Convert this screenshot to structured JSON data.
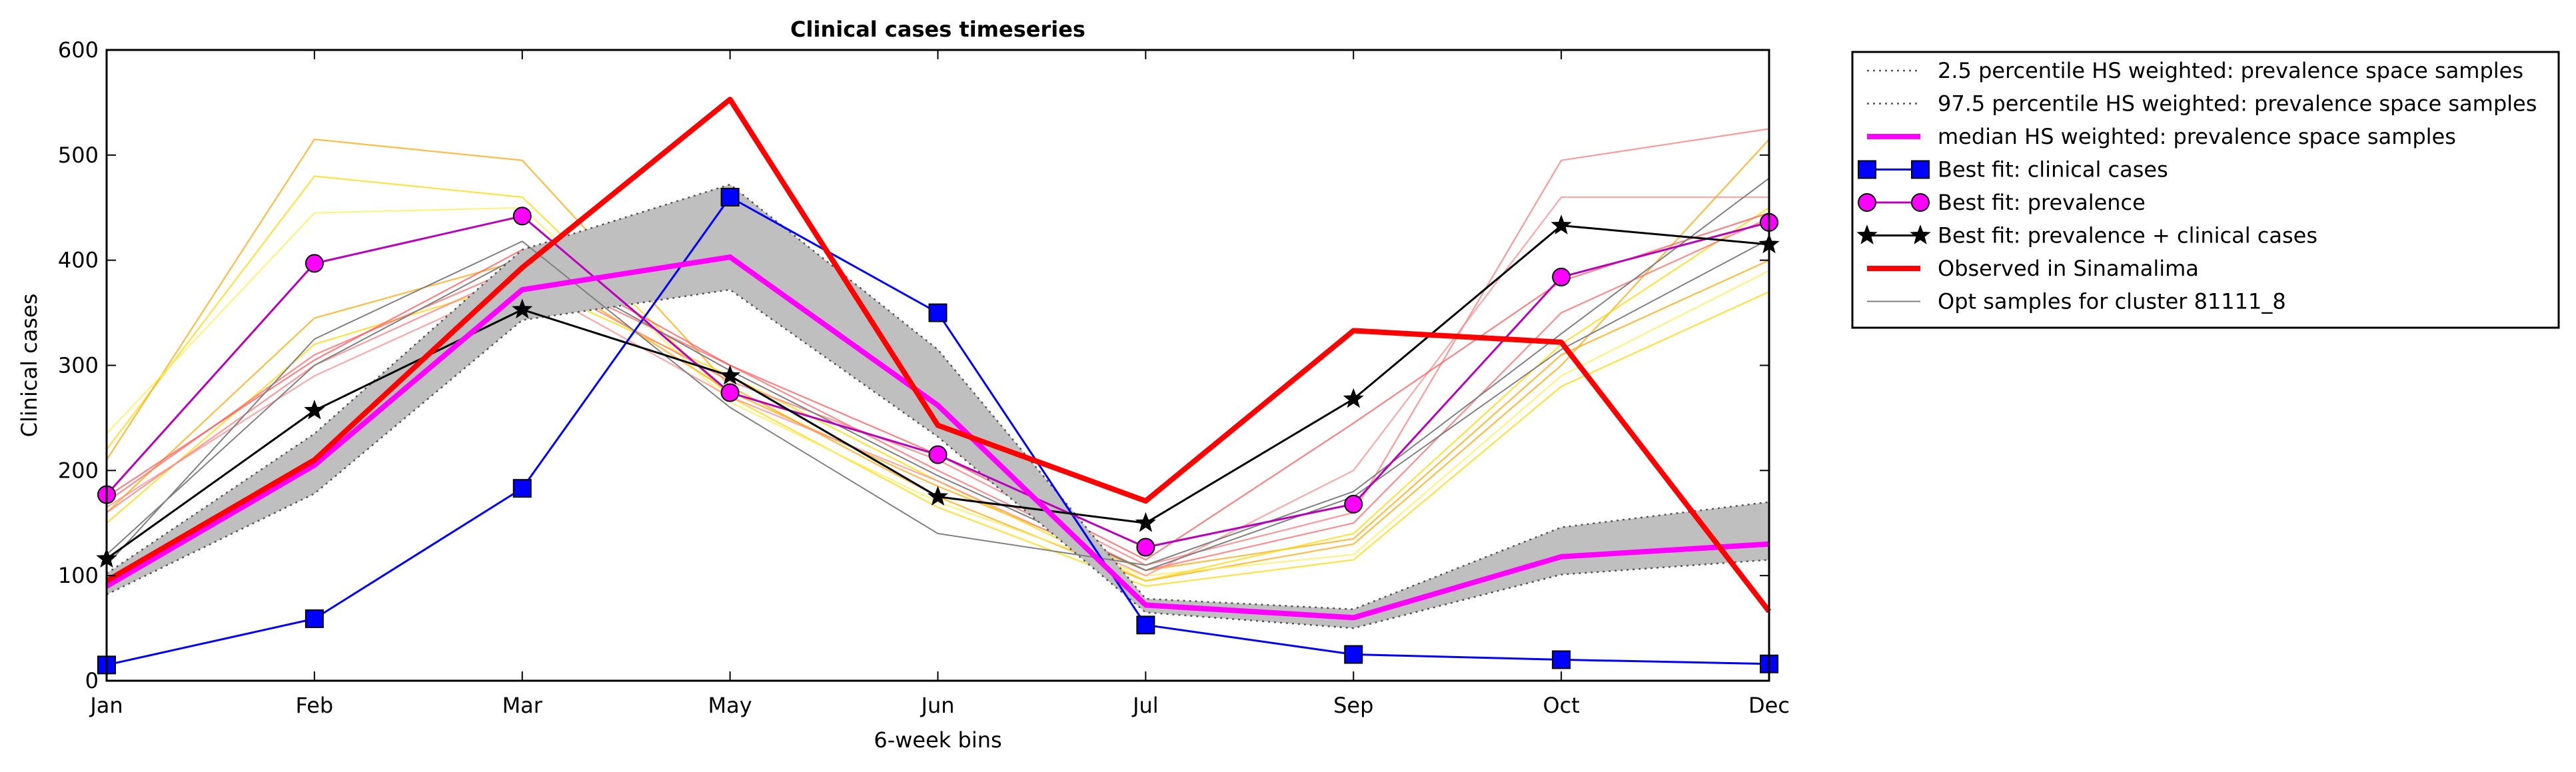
{
  "chart_data": {
    "type": "line",
    "title": "Clinical cases timeseries",
    "xlabel": "6-week bins",
    "ylabel": "Clinical cases",
    "categories": [
      "Jan",
      "Feb",
      "Mar",
      "May",
      "Jun",
      "Jul",
      "Sep",
      "Oct",
      "Dec"
    ],
    "ylim": [
      0,
      600
    ],
    "yticks": [
      "0",
      "100",
      "200",
      "300",
      "400",
      "500",
      "600"
    ],
    "grid": false,
    "legend_position": "outside-top-right",
    "band": {
      "lower": [
        82,
        178,
        343,
        372,
        232,
        65,
        50,
        101,
        115
      ],
      "upper": [
        102,
        235,
        410,
        472,
        315,
        78,
        68,
        146,
        170
      ],
      "color": "#bfbfbf"
    },
    "background_samples": [
      {
        "color": "#ffd700",
        "values": [
          220,
          480,
          460,
          270,
          165,
          90,
          115,
          280,
          370
        ]
      },
      {
        "color": "#ffa500",
        "values": [
          210,
          515,
          495,
          280,
          175,
          95,
          130,
          300,
          515
        ]
      },
      {
        "color": "#ffee55",
        "values": [
          235,
          445,
          450,
          265,
          170,
          100,
          120,
          290,
          390
        ]
      },
      {
        "color": "#ffa500",
        "values": [
          160,
          345,
          400,
          275,
          185,
          105,
          135,
          310,
          400
        ]
      },
      {
        "color": "#ffd700",
        "values": [
          150,
          320,
          380,
          290,
          190,
          95,
          140,
          320,
          450
        ]
      },
      {
        "color": "#ff6666",
        "values": [
          170,
          310,
          395,
          300,
          200,
          105,
          150,
          350,
          440
        ]
      },
      {
        "color": "#ff7777",
        "values": [
          160,
          300,
          390,
          285,
          210,
          110,
          160,
          495,
          525
        ]
      },
      {
        "color": "#ff8888",
        "values": [
          165,
          290,
          380,
          270,
          190,
          100,
          200,
          460,
          460
        ]
      },
      {
        "color": "#ff5555",
        "values": [
          175,
          305,
          410,
          300,
          215,
          115,
          245,
          380,
          445
        ]
      }
    ],
    "series": [
      {
        "name": "2.5 percentile HS weighted: prevalence space samples",
        "color": "#555555",
        "style": "dotted",
        "values": [
          82,
          178,
          343,
          372,
          232,
          65,
          50,
          101,
          115
        ]
      },
      {
        "name": "97.5 percentile HS weighted: prevalence space samples",
        "color": "#555555",
        "style": "dotted",
        "values": [
          102,
          235,
          410,
          472,
          315,
          78,
          68,
          146,
          170
        ]
      },
      {
        "name": "median HS weighted: prevalence space samples",
        "color": "#ff00ff",
        "style": "thick",
        "values": [
          90,
          205,
          372,
          403,
          262,
          72,
          60,
          118,
          130
        ]
      },
      {
        "name": "Best fit: clinical cases",
        "color": "#0000ff",
        "style": "square",
        "values": [
          15,
          59,
          183,
          460,
          350,
          53,
          25,
          20,
          16
        ]
      },
      {
        "name": "Best fit: prevalence",
        "color": "#bb00bb",
        "style": "circle",
        "values": [
          177,
          397,
          442,
          274,
          215,
          127,
          168,
          384,
          436
        ]
      },
      {
        "name": "Best fit: prevalence + clinical cases",
        "color": "#000000",
        "style": "star",
        "values": [
          116,
          257,
          353,
          290,
          175,
          150,
          268,
          433,
          415
        ]
      },
      {
        "name": "Observed in Sinamalima",
        "color": "#ff0000",
        "style": "thick",
        "values": [
          95,
          210,
          393,
          553,
          243,
          171,
          333,
          322,
          66
        ]
      },
      {
        "name": "Opt samples for cluster 81111_8",
        "color": "#808080",
        "style": "thin",
        "values": [
          110,
          325,
          418,
          260,
          140,
          110,
          180,
          330,
          478
        ]
      }
    ],
    "extra_grey_samples": [
      {
        "values": [
          120,
          300,
          405,
          295,
          195,
          105,
          175,
          315,
          420
        ]
      }
    ]
  }
}
